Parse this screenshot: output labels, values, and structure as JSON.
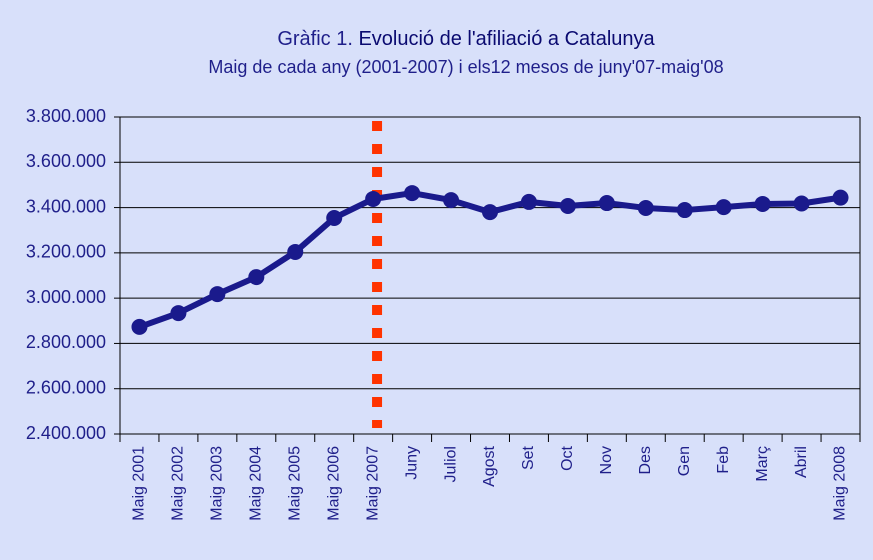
{
  "chart_data": {
    "type": "line",
    "title_prefix": "Gràfic 1.",
    "title": "Evolució de l'afiliació a Catalunya",
    "subtitle": "Maig de cada any (2001-2007) i els12 mesos de juny'07-maig'08",
    "categories": [
      "Maig 2001",
      "Maig 2002",
      "Maig 2003",
      "Maig 2004",
      "Maig 2005",
      "Maig 2006",
      "Maig 2007",
      "Juny",
      "Juliol",
      "Agost",
      "Set",
      "Oct",
      "Nov",
      "Des",
      "Gen",
      "Feb",
      "Març",
      "Abril",
      "Maig 2008"
    ],
    "values": [
      2873000,
      2934000,
      3018000,
      3093000,
      3204000,
      3354000,
      3438000,
      3464000,
      3433000,
      3380000,
      3425000,
      3407000,
      3420000,
      3398000,
      3389000,
      3402000,
      3416000,
      3418000,
      3444000
    ],
    "color": "#1a1a8c",
    "ylim": [
      2400000,
      3800000
    ],
    "yticks": [
      {
        "value": 2400000,
        "label": "2.400.000"
      },
      {
        "value": 2600000,
        "label": "2.600.000"
      },
      {
        "value": 2800000,
        "label": "2.800.000"
      },
      {
        "value": 3000000,
        "label": "3.000.000"
      },
      {
        "value": 3200000,
        "label": "3.200.000"
      },
      {
        "value": 3400000,
        "label": "3.400.000"
      },
      {
        "value": 3600000,
        "label": "3.600.000"
      },
      {
        "value": 3800000,
        "label": "3.800.000"
      }
    ],
    "grid": true
  }
}
